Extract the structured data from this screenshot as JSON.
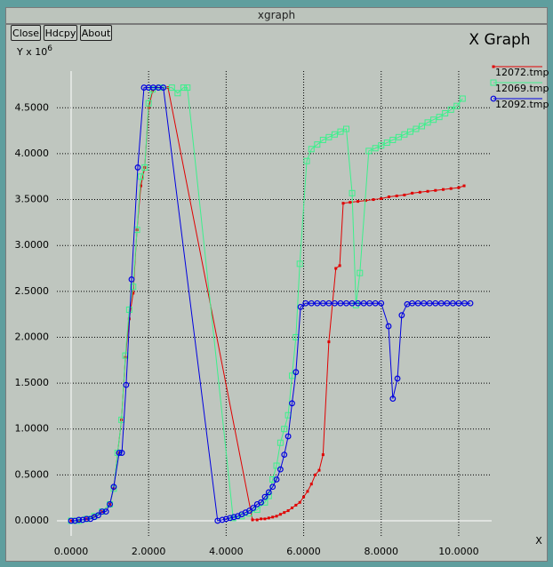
{
  "window": {
    "title": "xgraph",
    "buttons": [
      "Close",
      "Hdcpy",
      "About"
    ]
  },
  "chart_data": {
    "type": "line",
    "title": "X Graph",
    "xlabel": "X",
    "ylabel": "Y x 10",
    "ylabel_exponent": "6",
    "xlim": [
      -0.55,
      10.85
    ],
    "ylim": [
      -0.165,
      4.9
    ],
    "grid": true,
    "xticks": [
      {
        "value": 0,
        "label": "0.0000"
      },
      {
        "value": 2,
        "label": "2.0000"
      },
      {
        "value": 4,
        "label": "4.0000"
      },
      {
        "value": 6,
        "label": "6.0000"
      },
      {
        "value": 8,
        "label": "8.0000"
      },
      {
        "value": 10,
        "label": "10.0000"
      }
    ],
    "yticks": [
      {
        "value": 0,
        "label": "0.0000"
      },
      {
        "value": 0.5,
        "label": "0.5000"
      },
      {
        "value": 1,
        "label": "1.0000"
      },
      {
        "value": 1.5,
        "label": "1.5000"
      },
      {
        "value": 2,
        "label": "2.0000"
      },
      {
        "value": 2.5,
        "label": "2.5000"
      },
      {
        "value": 3,
        "label": "3.0000"
      },
      {
        "value": 3.5,
        "label": "3.5000"
      },
      {
        "value": 4,
        "label": "4.0000"
      },
      {
        "value": 4.5,
        "label": "4.5000"
      }
    ],
    "series": [
      {
        "name": "12072.tmp",
        "color": "#e00000",
        "marker": "dot",
        "x": [
          0,
          0.2,
          0.4,
          0.6,
          0.8,
          1.0,
          1.1,
          1.2,
          1.3,
          1.4,
          1.5,
          1.6,
          1.7,
          1.8,
          1.9,
          2.0,
          2.1,
          2.2,
          2.5,
          4.68,
          4.8,
          4.9,
          5.0,
          5.1,
          5.2,
          5.3,
          5.4,
          5.5,
          5.6,
          5.7,
          5.8,
          5.9,
          6.0,
          6.1,
          6.2,
          6.3,
          6.4,
          6.5,
          6.65,
          6.83,
          6.93,
          7.02,
          7.2,
          7.4,
          7.6,
          7.8,
          8.0,
          8.2,
          8.4,
          8.6,
          8.8,
          9.0,
          9.2,
          9.4,
          9.6,
          9.8,
          10.0,
          10.14
        ],
        "values": [
          0,
          0,
          0.02,
          0.05,
          0.1,
          0.18,
          0.35,
          0.74,
          1.1,
          1.78,
          2.2,
          2.48,
          3.17,
          3.65,
          3.85,
          4.5,
          4.68,
          4.72,
          4.72,
          0.01,
          0.01,
          0.02,
          0.02,
          0.03,
          0.04,
          0.05,
          0.07,
          0.09,
          0.11,
          0.14,
          0.17,
          0.2,
          0.26,
          0.32,
          0.4,
          0.5,
          0.55,
          0.72,
          1.95,
          2.75,
          2.78,
          3.46,
          3.47,
          3.48,
          3.49,
          3.5,
          3.51,
          3.53,
          3.54,
          3.55,
          3.57,
          3.58,
          3.59,
          3.6,
          3.61,
          3.62,
          3.63,
          3.65
        ]
      },
      {
        "name": "12069.tmp",
        "color": "#3cf08c",
        "marker": "square",
        "x": [
          0,
          0.2,
          0.4,
          0.6,
          0.8,
          1.0,
          1.1,
          1.2,
          1.3,
          1.4,
          1.5,
          1.6,
          1.7,
          1.8,
          1.9,
          2.0,
          2.1,
          2.3,
          2.6,
          2.75,
          2.9,
          3.0,
          4.18,
          4.4,
          4.6,
          4.8,
          5.0,
          5.1,
          5.2,
          5.3,
          5.4,
          5.5,
          5.6,
          5.7,
          5.8,
          5.9,
          6.08,
          6.2,
          6.35,
          6.5,
          6.65,
          6.8,
          6.95,
          7.1,
          7.25,
          7.35,
          7.45,
          7.68,
          7.85,
          8.0,
          8.15,
          8.3,
          8.45,
          8.6,
          8.75,
          8.9,
          9.05,
          9.2,
          9.35,
          9.5,
          9.65,
          9.8,
          9.95,
          10.1
        ],
        "values": [
          0,
          0,
          0.02,
          0.05,
          0.1,
          0.18,
          0.35,
          0.74,
          1.1,
          1.8,
          2.3,
          2.55,
          3.17,
          3.75,
          3.85,
          4.55,
          4.7,
          4.72,
          4.72,
          4.66,
          4.72,
          4.72,
          0.03,
          0.05,
          0.08,
          0.12,
          0.2,
          0.27,
          0.45,
          0.6,
          0.85,
          1.0,
          1.15,
          1.58,
          2.0,
          2.8,
          3.92,
          4.05,
          4.1,
          4.15,
          4.18,
          4.21,
          4.24,
          4.27,
          3.57,
          2.35,
          2.7,
          4.03,
          4.06,
          4.09,
          4.12,
          4.15,
          4.18,
          4.21,
          4.24,
          4.27,
          4.3,
          4.34,
          4.37,
          4.4,
          4.44,
          4.48,
          4.52,
          4.6
        ]
      },
      {
        "name": "12092.tmp",
        "color": "#0000e0",
        "marker": "circle",
        "x": [
          0,
          0.1,
          0.2,
          0.3,
          0.4,
          0.5,
          0.6,
          0.7,
          0.8,
          0.9,
          1.0,
          1.1,
          1.24,
          1.31,
          1.42,
          1.56,
          1.72,
          1.88,
          2.0,
          2.12,
          2.25,
          2.38,
          3.78,
          3.9,
          4.0,
          4.1,
          4.2,
          4.3,
          4.4,
          4.5,
          4.6,
          4.7,
          4.8,
          4.9,
          5.0,
          5.1,
          5.2,
          5.3,
          5.4,
          5.5,
          5.6,
          5.7,
          5.8,
          5.92,
          6.05,
          6.2,
          6.35,
          6.5,
          6.65,
          6.8,
          6.95,
          7.1,
          7.25,
          7.4,
          7.55,
          7.7,
          7.85,
          8.0,
          8.19,
          8.3,
          8.42,
          8.53,
          8.67,
          8.8,
          8.95,
          9.1,
          9.25,
          9.4,
          9.55,
          9.7,
          9.85,
          10.0,
          10.15,
          10.3
        ],
        "values": [
          0,
          0,
          0.01,
          0.01,
          0.02,
          0.02,
          0.04,
          0.06,
          0.1,
          0.1,
          0.18,
          0.37,
          0.74,
          0.74,
          1.48,
          2.63,
          3.85,
          4.72,
          4.72,
          4.72,
          4.72,
          4.72,
          0,
          0.01,
          0.02,
          0.03,
          0.04,
          0.05,
          0.07,
          0.09,
          0.11,
          0.14,
          0.18,
          0.2,
          0.26,
          0.31,
          0.37,
          0.45,
          0.56,
          0.72,
          0.92,
          1.28,
          1.62,
          2.33,
          2.37,
          2.37,
          2.37,
          2.37,
          2.37,
          2.37,
          2.37,
          2.37,
          2.37,
          2.37,
          2.37,
          2.37,
          2.37,
          2.37,
          2.12,
          1.33,
          1.55,
          2.24,
          2.36,
          2.37,
          2.37,
          2.37,
          2.37,
          2.37,
          2.37,
          2.37,
          2.37,
          2.37,
          2.37,
          2.37
        ]
      }
    ]
  }
}
